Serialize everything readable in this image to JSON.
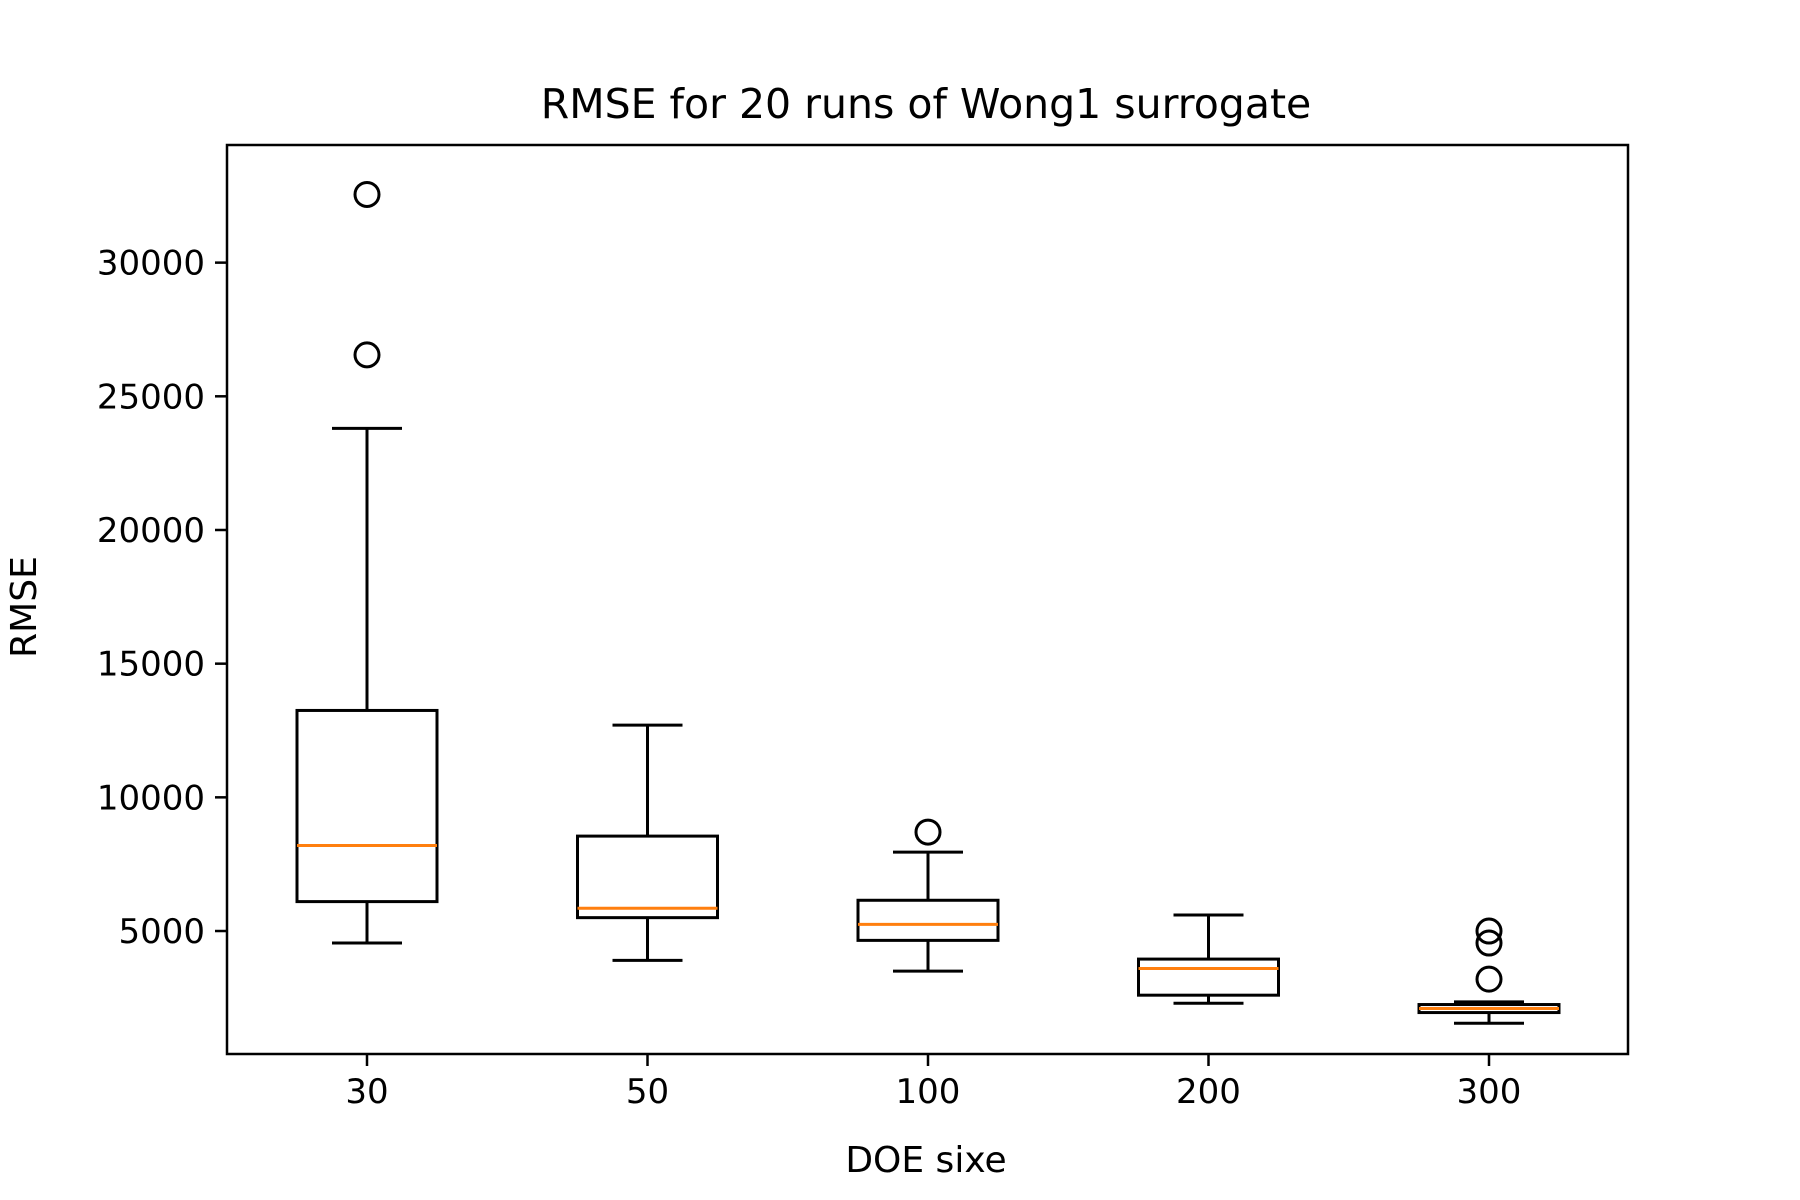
{
  "chart_data": {
    "type": "box",
    "title": "RMSE for 20 runs of Wong1 surrogate",
    "xlabel": "DOE sixe",
    "ylabel": "RMSE",
    "categories": [
      "30",
      "50",
      "100",
      "200",
      "300"
    ],
    "y_ticks": [
      5000,
      10000,
      15000,
      20000,
      25000,
      30000
    ],
    "ylim": [
      400,
      34400
    ],
    "grid": false,
    "legend": "none",
    "boxes": [
      {
        "category": "30",
        "whisker_low": 4550,
        "q1": 6100,
        "median": 8200,
        "q3": 13250,
        "whisker_high": 23800,
        "outliers": [
          26550,
          32550
        ]
      },
      {
        "category": "50",
        "whisker_low": 3900,
        "q1": 5500,
        "median": 5850,
        "q3": 8550,
        "whisker_high": 12700,
        "outliers": []
      },
      {
        "category": "100",
        "whisker_low": 3500,
        "q1": 4650,
        "median": 5250,
        "q3": 6150,
        "whisker_high": 7950,
        "outliers": [
          8700
        ]
      },
      {
        "category": "200",
        "whisker_low": 2300,
        "q1": 2600,
        "median": 3600,
        "q3": 3950,
        "whisker_high": 5600,
        "outliers": []
      },
      {
        "category": "300",
        "whisker_low": 1550,
        "q1": 1950,
        "median": 2100,
        "q3": 2250,
        "whisker_high": 2350,
        "outliers": [
          3200,
          4550,
          5000
        ]
      }
    ],
    "colors": {
      "box": "#000000",
      "median": "#ff7f0e",
      "frame": "#000000"
    }
  }
}
